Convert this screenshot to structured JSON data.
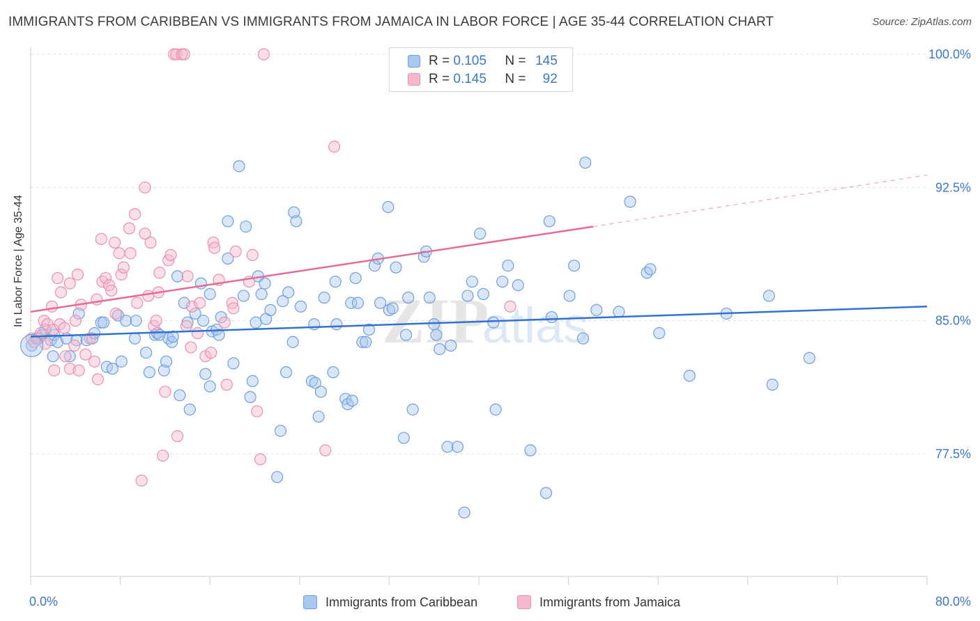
{
  "title": "IMMIGRANTS FROM CARIBBEAN VS IMMIGRANTS FROM JAMAICA IN LABOR FORCE | AGE 35-44 CORRELATION CHART",
  "source": "Source: ZipAtlas.com",
  "legend": {
    "row1": {
      "r_label": "R =",
      "r_value": "0.105",
      "n_label": "N =",
      "n_value": "145"
    },
    "row2": {
      "r_label": "R =",
      "r_value": "0.145",
      "n_label": "N =",
      "n_value": "92"
    }
  },
  "watermark": {
    "zip": "ZIP",
    "atlas": "atlas"
  },
  "colors": {
    "blue_fill": "#a9c8f0",
    "blue_stroke": "#6f9fdc",
    "blue_line": "#2f72cf",
    "pink_fill": "#f6b8cc",
    "pink_stroke": "#ea8fac",
    "pink_line": "#e46b94",
    "axis_text": "#3a78c9",
    "grid": "#dddddd"
  },
  "chart_data": {
    "type": "scatter",
    "xlabel": "",
    "ylabel": "In Labor Force | Age 35-44",
    "xlim": [
      0,
      80
    ],
    "ylim": [
      71.5,
      101
    ],
    "x_tick_labels": [
      {
        "v": 0,
        "label": "0.0%"
      },
      {
        "v": 80,
        "label": "80.0%"
      }
    ],
    "y_ticks": [
      {
        "v": 77.5,
        "label": "77.5%"
      },
      {
        "v": 85.0,
        "label": "85.0%"
      },
      {
        "v": 92.5,
        "label": "92.5%"
      },
      {
        "v": 100.0,
        "label": "100.0%"
      }
    ],
    "grid": "horizontal dashed",
    "legend_position": "top-center",
    "series": [
      {
        "name": "Immigrants from Caribbean",
        "color": "#a9c8f0",
        "trend": {
          "x0": 0,
          "y0": 84.1,
          "x1": 80,
          "y1": 85.8
        },
        "points": [
          [
            0.1,
            83.6
          ],
          [
            0.5,
            84.0
          ],
          [
            0.7,
            84.0
          ],
          [
            1.0,
            84.2
          ],
          [
            1.3,
            84.5
          ],
          [
            1.8,
            83.9
          ],
          [
            2.0,
            83.0
          ],
          [
            2.1,
            84.2
          ],
          [
            2.4,
            83.8
          ],
          [
            3.2,
            84.0
          ],
          [
            3.5,
            83.0
          ],
          [
            4.1,
            83.9
          ],
          [
            4.3,
            85.4
          ],
          [
            5.0,
            83.9
          ],
          [
            5.5,
            84.0
          ],
          [
            5.7,
            84.3
          ],
          [
            6.3,
            84.9
          ],
          [
            6.5,
            84.9
          ],
          [
            6.8,
            82.4
          ],
          [
            7.3,
            82.3
          ],
          [
            7.8,
            85.3
          ],
          [
            8.1,
            82.7
          ],
          [
            8.5,
            85.0
          ],
          [
            9.3,
            84.0
          ],
          [
            9.4,
            85.0
          ],
          [
            10.3,
            83.2
          ],
          [
            10.6,
            82.1
          ],
          [
            11.1,
            84.2
          ],
          [
            11.3,
            84.3
          ],
          [
            11.5,
            84.2
          ],
          [
            11.9,
            82.2
          ],
          [
            12.1,
            82.7
          ],
          [
            12.3,
            84.0
          ],
          [
            12.6,
            83.8
          ],
          [
            12.7,
            84.1
          ],
          [
            13.1,
            87.5
          ],
          [
            13.7,
            86.0
          ],
          [
            13.3,
            80.8
          ],
          [
            14.0,
            84.9
          ],
          [
            14.2,
            80.0
          ],
          [
            14.7,
            85.4
          ],
          [
            15.2,
            87.1
          ],
          [
            15.4,
            85.0
          ],
          [
            15.6,
            82.0
          ],
          [
            16.0,
            86.5
          ],
          [
            16.0,
            81.3
          ],
          [
            16.2,
            84.4
          ],
          [
            16.6,
            84.5
          ],
          [
            16.8,
            84.2
          ],
          [
            17.0,
            85.2
          ],
          [
            17.6,
            88.5
          ],
          [
            17.6,
            90.6
          ],
          [
            18.1,
            82.6
          ],
          [
            18.6,
            93.7
          ],
          [
            19.0,
            86.4
          ],
          [
            19.2,
            90.3
          ],
          [
            19.6,
            80.7
          ],
          [
            19.8,
            81.6
          ],
          [
            20.1,
            84.9
          ],
          [
            20.3,
            87.5
          ],
          [
            20.6,
            86.5
          ],
          [
            20.9,
            87.1
          ],
          [
            21.0,
            85.1
          ],
          [
            21.4,
            85.6
          ],
          [
            22.0,
            76.2
          ],
          [
            22.3,
            78.8
          ],
          [
            22.5,
            86.1
          ],
          [
            22.8,
            82.1
          ],
          [
            23.0,
            86.6
          ],
          [
            23.4,
            83.8
          ],
          [
            23.5,
            91.1
          ],
          [
            23.7,
            90.6
          ],
          [
            24.1,
            85.8
          ],
          [
            25.1,
            81.6
          ],
          [
            25.3,
            84.8
          ],
          [
            25.4,
            81.5
          ],
          [
            25.7,
            79.6
          ],
          [
            25.9,
            81.0
          ],
          [
            26.2,
            86.3
          ],
          [
            27.0,
            82.1
          ],
          [
            27.2,
            87.2
          ],
          [
            27.3,
            84.8
          ],
          [
            28.1,
            80.6
          ],
          [
            28.3,
            80.3
          ],
          [
            28.6,
            86.0
          ],
          [
            28.7,
            80.5
          ],
          [
            29.0,
            87.4
          ],
          [
            29.2,
            86.0
          ],
          [
            29.6,
            83.8
          ],
          [
            29.9,
            83.8
          ],
          [
            30.2,
            84.5
          ],
          [
            30.7,
            88.1
          ],
          [
            31.0,
            88.5
          ],
          [
            31.2,
            86.0
          ],
          [
            31.9,
            91.4
          ],
          [
            32.0,
            85.6
          ],
          [
            32.3,
            85.7
          ],
          [
            32.6,
            88.0
          ],
          [
            33.3,
            78.4
          ],
          [
            33.5,
            84.2
          ],
          [
            33.7,
            86.3
          ],
          [
            34.1,
            80.0
          ],
          [
            35.1,
            88.6
          ],
          [
            35.3,
            88.9
          ],
          [
            35.6,
            86.3
          ],
          [
            36.0,
            84.8
          ],
          [
            36.2,
            84.2
          ],
          [
            36.5,
            83.4
          ],
          [
            37.2,
            77.9
          ],
          [
            37.5,
            83.6
          ],
          [
            38.1,
            77.9
          ],
          [
            38.7,
            74.2
          ],
          [
            39.0,
            86.4
          ],
          [
            39.4,
            87.2
          ],
          [
            40.1,
            89.9
          ],
          [
            40.4,
            86.5
          ],
          [
            41.3,
            84.9
          ],
          [
            41.5,
            80.0
          ],
          [
            42.1,
            87.2
          ],
          [
            42.6,
            88.1
          ],
          [
            43.5,
            87.0
          ],
          [
            44.6,
            77.7
          ],
          [
            46.0,
            75.3
          ],
          [
            46.3,
            90.6
          ],
          [
            46.5,
            85.2
          ],
          [
            48.1,
            86.4
          ],
          [
            48.5,
            88.1
          ],
          [
            49.3,
            84.0
          ],
          [
            49.5,
            93.9
          ],
          [
            50.5,
            85.6
          ],
          [
            52.5,
            85.5
          ],
          [
            53.5,
            91.7
          ],
          [
            55.0,
            87.7
          ],
          [
            55.3,
            87.9
          ],
          [
            56.1,
            84.3
          ],
          [
            58.8,
            81.9
          ],
          [
            62.1,
            85.4
          ],
          [
            65.9,
            86.4
          ],
          [
            66.2,
            81.4
          ],
          [
            69.5,
            82.9
          ]
        ]
      },
      {
        "name": "Immigrants from Jamaica",
        "color": "#f6b8cc",
        "trend": {
          "x0": 0,
          "y0": 85.5,
          "x1": 50.2,
          "y1": 90.3,
          "dash_to_x": 80,
          "dash_to_y": 93.2
        },
        "points": [
          [
            0.1,
            84.0
          ],
          [
            0.3,
            83.8
          ],
          [
            0.6,
            84.0
          ],
          [
            0.9,
            84.3
          ],
          [
            1.2,
            85.0
          ],
          [
            1.3,
            83.7
          ],
          [
            1.5,
            84.8
          ],
          [
            1.9,
            85.8
          ],
          [
            2.0,
            84.5
          ],
          [
            2.1,
            82.2
          ],
          [
            2.4,
            87.4
          ],
          [
            2.6,
            84.8
          ],
          [
            2.7,
            86.6
          ],
          [
            3.0,
            84.6
          ],
          [
            3.1,
            83.0
          ],
          [
            3.5,
            87.1
          ],
          [
            3.5,
            82.3
          ],
          [
            3.9,
            83.6
          ],
          [
            4.0,
            85.0
          ],
          [
            4.2,
            87.6
          ],
          [
            4.3,
            82.2
          ],
          [
            4.5,
            85.9
          ],
          [
            4.9,
            83.1
          ],
          [
            5.3,
            84.0
          ],
          [
            5.7,
            82.7
          ],
          [
            5.9,
            86.2
          ],
          [
            6.0,
            81.7
          ],
          [
            6.3,
            89.6
          ],
          [
            6.4,
            87.2
          ],
          [
            6.7,
            87.4
          ],
          [
            7.0,
            87.0
          ],
          [
            7.2,
            86.7
          ],
          [
            7.5,
            89.4
          ],
          [
            7.6,
            85.4
          ],
          [
            7.9,
            88.8
          ],
          [
            8.1,
            87.6
          ],
          [
            8.3,
            88.0
          ],
          [
            8.8,
            90.2
          ],
          [
            8.9,
            88.8
          ],
          [
            9.3,
            91.0
          ],
          [
            9.5,
            86.0
          ],
          [
            9.9,
            76.0
          ],
          [
            10.2,
            89.9
          ],
          [
            10.2,
            92.5
          ],
          [
            10.5,
            86.4
          ],
          [
            10.7,
            89.4
          ],
          [
            11.0,
            84.7
          ],
          [
            11.2,
            85.0
          ],
          [
            11.4,
            86.6
          ],
          [
            11.5,
            87.7
          ],
          [
            11.8,
            77.4
          ],
          [
            12.0,
            81.0
          ],
          [
            12.3,
            88.4
          ],
          [
            12.5,
            88.7
          ],
          [
            12.8,
            100.0
          ],
          [
            13.0,
            100.0
          ],
          [
            13.1,
            78.5
          ],
          [
            13.5,
            100.0
          ],
          [
            13.7,
            100.0
          ],
          [
            13.9,
            84.7
          ],
          [
            14.0,
            87.5
          ],
          [
            14.3,
            83.5
          ],
          [
            14.4,
            85.8
          ],
          [
            14.9,
            84.3
          ],
          [
            15.1,
            86.0
          ],
          [
            15.6,
            83.0
          ],
          [
            16.1,
            83.2
          ],
          [
            16.3,
            89.4
          ],
          [
            16.4,
            89.1
          ],
          [
            16.8,
            87.3
          ],
          [
            17.3,
            84.9
          ],
          [
            17.5,
            81.4
          ],
          [
            18.0,
            86.0
          ],
          [
            18.1,
            85.7
          ],
          [
            18.3,
            88.9
          ],
          [
            19.5,
            87.2
          ],
          [
            19.8,
            88.7
          ],
          [
            20.2,
            79.9
          ],
          [
            20.5,
            77.2
          ],
          [
            20.8,
            100.0
          ],
          [
            27.1,
            94.8
          ],
          [
            26.3,
            77.7
          ],
          [
            42.8,
            85.8
          ]
        ]
      }
    ]
  },
  "bottom_legend": {
    "series1": "Immigrants from Caribbean",
    "series2": "Immigrants from Jamaica"
  }
}
